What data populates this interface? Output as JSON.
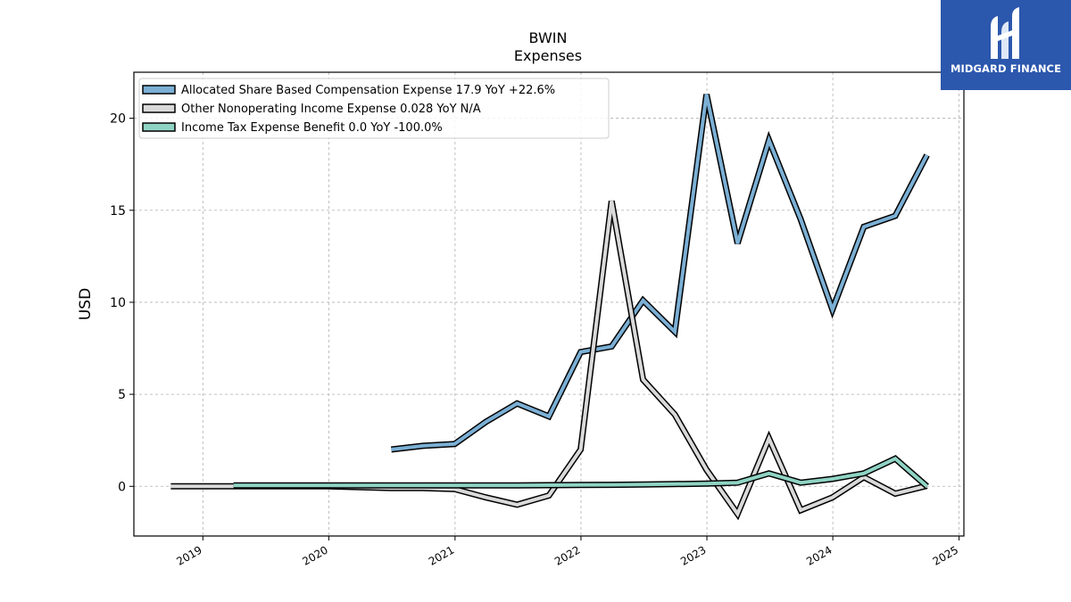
{
  "chart_data": {
    "type": "line",
    "title": "BWIN",
    "subtitle": "Expenses",
    "ylabel": "USD",
    "xlim": [
      "2018-06-15",
      "2025-01-15"
    ],
    "ylim": [
      -2.7,
      22.5
    ],
    "x_ticks": [
      "2019",
      "2020",
      "2021",
      "2022",
      "2023",
      "2024",
      "2025"
    ],
    "y_ticks": [
      0,
      5,
      10,
      15,
      20
    ],
    "grid": true,
    "legend_position": "top-left",
    "series": [
      {
        "name": "Allocated Share Based Compensation Expense  17.9 YoY +22.6%",
        "color": "#7bafd4",
        "x": [
          "2020-06-30",
          "2020-09-30",
          "2020-12-31",
          "2021-03-31",
          "2021-06-30",
          "2021-09-30",
          "2021-12-31",
          "2022-03-31",
          "2022-06-30",
          "2022-09-30",
          "2022-12-31",
          "2023-03-31",
          "2023-06-30",
          "2023-09-30",
          "2023-12-31",
          "2024-03-31",
          "2024-06-30",
          "2024-09-30"
        ],
        "y": [
          2.0,
          2.2,
          2.3,
          3.5,
          4.5,
          3.8,
          7.3,
          7.6,
          10.1,
          8.4,
          21.3,
          13.2,
          18.8,
          14.5,
          9.6,
          14.1,
          14.7,
          18.0
        ]
      },
      {
        "name": "Other Nonoperating Income Expense  0.028 YoY N/A",
        "color": "#d9d9d9",
        "x": [
          "2018-09-30",
          "2018-12-31",
          "2019-03-31",
          "2019-06-30",
          "2019-09-30",
          "2019-12-31",
          "2020-03-31",
          "2020-06-30",
          "2020-09-30",
          "2020-12-31",
          "2021-03-31",
          "2021-06-30",
          "2021-09-30",
          "2021-12-31",
          "2022-03-31",
          "2022-06-30",
          "2022-09-30",
          "2022-12-31",
          "2023-03-31",
          "2023-06-30",
          "2023-09-30",
          "2023-12-31",
          "2024-03-31",
          "2024-06-30",
          "2024-09-30"
        ],
        "y": [
          0.0,
          0.0,
          0.0,
          0.0,
          0.0,
          0.0,
          -0.05,
          -0.1,
          -0.1,
          -0.15,
          -0.6,
          -1.0,
          -0.5,
          2.0,
          15.5,
          5.8,
          3.9,
          0.9,
          -1.5,
          2.6,
          -1.3,
          -0.6,
          0.5,
          -0.4,
          0.03
        ]
      },
      {
        "name": "Income Tax Expense Benefit  0.0 YoY -100.0%",
        "color": "#8fd3c4",
        "x": [
          "2019-03-31",
          "2019-06-30",
          "2019-09-30",
          "2019-12-31",
          "2020-03-31",
          "2020-06-30",
          "2020-09-30",
          "2020-12-31",
          "2021-03-31",
          "2021-06-30",
          "2021-09-30",
          "2021-12-31",
          "2022-03-31",
          "2022-06-30",
          "2022-09-30",
          "2022-12-31",
          "2023-03-31",
          "2023-06-30",
          "2023-09-30",
          "2023-12-31",
          "2024-03-31",
          "2024-06-30",
          "2024-09-30"
        ],
        "y": [
          0.05,
          0.05,
          0.05,
          0.05,
          0.05,
          0.05,
          0.05,
          0.05,
          0.05,
          0.05,
          0.06,
          0.07,
          0.08,
          0.1,
          0.12,
          0.15,
          0.2,
          0.7,
          0.2,
          0.4,
          0.7,
          1.5,
          0.0
        ]
      }
    ]
  },
  "logo": {
    "text": "MIDGARD FINANCE",
    "icon": "midgard-logo-icon",
    "background": "#2b57ad"
  }
}
